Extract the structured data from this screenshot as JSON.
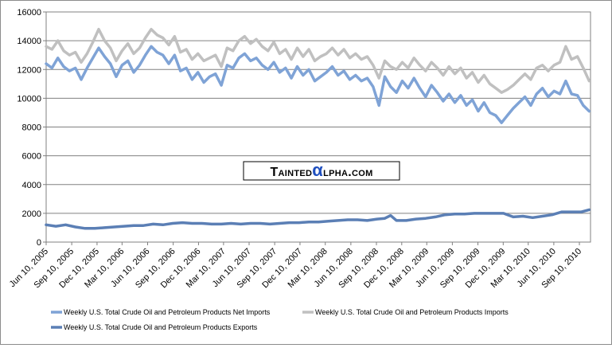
{
  "watermark": {
    "text_before": "Tainted",
    "alpha_glyph": "α",
    "text_after": "lpha.com",
    "alpha_color": "#1f4fbf"
  },
  "chart_data": {
    "type": "line",
    "title": "",
    "xlabel": "",
    "ylabel": "",
    "ylim": [
      0,
      16000
    ],
    "yticks": [
      0,
      2000,
      4000,
      6000,
      8000,
      10000,
      12000,
      14000,
      16000
    ],
    "xlim": [
      "2005-06-10",
      "2010-10-20"
    ],
    "xtick_labels": [
      {
        "date": "2005-06-10",
        "label": "Jun 10, 2005"
      },
      {
        "date": "2005-09-10",
        "label": "Sep 10, 2005"
      },
      {
        "date": "2005-12-10",
        "label": "Dec 10, 2005"
      },
      {
        "date": "2006-03-10",
        "label": "Mar 10, 2006"
      },
      {
        "date": "2006-06-10",
        "label": "Jun 10, 2006"
      },
      {
        "date": "2006-09-10",
        "label": "Sep 10, 2006"
      },
      {
        "date": "2006-12-10",
        "label": "Dec 10, 2006"
      },
      {
        "date": "2007-03-10",
        "label": "Mar 10, 2007"
      },
      {
        "date": "2007-06-10",
        "label": "Jun 10, 2007"
      },
      {
        "date": "2007-09-10",
        "label": "Sep 10, 2007"
      },
      {
        "date": "2007-12-10",
        "label": "Dec 10, 2007"
      },
      {
        "date": "2008-03-10",
        "label": "Mar 10, 2008"
      },
      {
        "date": "2008-06-10",
        "label": "Jun 10, 2008"
      },
      {
        "date": "2008-09-10",
        "label": "Sep 10, 2008"
      },
      {
        "date": "2008-12-10",
        "label": "Dec 10, 2008"
      },
      {
        "date": "2009-03-10",
        "label": "Mar 10, 2009"
      },
      {
        "date": "2009-06-10",
        "label": "Jun 10, 2009"
      },
      {
        "date": "2009-09-10",
        "label": "Sep 10, 2009"
      },
      {
        "date": "2009-12-10",
        "label": "Dec 10, 2009"
      },
      {
        "date": "2010-03-10",
        "label": "Mar 10, 2010"
      },
      {
        "date": "2010-06-10",
        "label": "Jun 10, 2010"
      },
      {
        "date": "2010-09-10",
        "label": "Sep 10, 2010"
      }
    ],
    "grid": true,
    "legend_position": "bottom",
    "series": [
      {
        "name": "Weekly U.S. Total Crude Oil and Petroleum Products Imports",
        "color": "#c0c0c0",
        "points": [
          [
            "2005-06-10",
            13600
          ],
          [
            "2005-07-01",
            13400
          ],
          [
            "2005-07-22",
            14000
          ],
          [
            "2005-08-12",
            13300
          ],
          [
            "2005-09-02",
            13000
          ],
          [
            "2005-09-23",
            13200
          ],
          [
            "2005-10-14",
            12500
          ],
          [
            "2005-11-04",
            13100
          ],
          [
            "2005-11-25",
            13900
          ],
          [
            "2005-12-16",
            14800
          ],
          [
            "2006-01-06",
            14000
          ],
          [
            "2006-01-27",
            13500
          ],
          [
            "2006-02-17",
            12600
          ],
          [
            "2006-03-10",
            13300
          ],
          [
            "2006-03-31",
            13800
          ],
          [
            "2006-04-21",
            13100
          ],
          [
            "2006-05-12",
            13500
          ],
          [
            "2006-06-02",
            14200
          ],
          [
            "2006-06-23",
            14800
          ],
          [
            "2006-07-14",
            14400
          ],
          [
            "2006-08-04",
            14200
          ],
          [
            "2006-08-25",
            13700
          ],
          [
            "2006-09-15",
            14300
          ],
          [
            "2006-10-06",
            13200
          ],
          [
            "2006-10-27",
            13400
          ],
          [
            "2006-11-17",
            12700
          ],
          [
            "2006-12-08",
            13100
          ],
          [
            "2006-12-29",
            12600
          ],
          [
            "2007-01-19",
            12800
          ],
          [
            "2007-02-09",
            13000
          ],
          [
            "2007-03-02",
            12200
          ],
          [
            "2007-03-23",
            13500
          ],
          [
            "2007-04-13",
            13300
          ],
          [
            "2007-05-04",
            14000
          ],
          [
            "2007-05-25",
            14300
          ],
          [
            "2007-06-15",
            13800
          ],
          [
            "2007-07-06",
            14100
          ],
          [
            "2007-07-27",
            13600
          ],
          [
            "2007-08-17",
            13300
          ],
          [
            "2007-09-07",
            13900
          ],
          [
            "2007-09-28",
            13100
          ],
          [
            "2007-10-19",
            13400
          ],
          [
            "2007-11-09",
            12700
          ],
          [
            "2007-11-30",
            13500
          ],
          [
            "2007-12-21",
            12900
          ],
          [
            "2008-01-11",
            13400
          ],
          [
            "2008-02-01",
            12600
          ],
          [
            "2008-02-22",
            12900
          ],
          [
            "2008-03-14",
            13100
          ],
          [
            "2008-04-04",
            13500
          ],
          [
            "2008-04-25",
            13000
          ],
          [
            "2008-05-16",
            13400
          ],
          [
            "2008-06-06",
            12800
          ],
          [
            "2008-06-27",
            13100
          ],
          [
            "2008-07-18",
            12700
          ],
          [
            "2008-08-08",
            12900
          ],
          [
            "2008-08-29",
            12300
          ],
          [
            "2008-09-19",
            11400
          ],
          [
            "2008-10-10",
            12600
          ],
          [
            "2008-10-31",
            12200
          ],
          [
            "2008-11-21",
            12000
          ],
          [
            "2008-12-12",
            12500
          ],
          [
            "2009-01-02",
            12100
          ],
          [
            "2009-01-23",
            12800
          ],
          [
            "2009-02-13",
            12300
          ],
          [
            "2009-03-06",
            11900
          ],
          [
            "2009-03-27",
            12500
          ],
          [
            "2009-04-17",
            12100
          ],
          [
            "2009-05-08",
            11600
          ],
          [
            "2009-05-29",
            12200
          ],
          [
            "2009-06-19",
            11700
          ],
          [
            "2009-07-10",
            12100
          ],
          [
            "2009-07-31",
            11400
          ],
          [
            "2009-08-21",
            11800
          ],
          [
            "2009-09-11",
            11100
          ],
          [
            "2009-10-02",
            11600
          ],
          [
            "2009-10-23",
            11000
          ],
          [
            "2009-11-13",
            10700
          ],
          [
            "2009-12-04",
            10400
          ],
          [
            "2009-12-25",
            10600
          ],
          [
            "2010-01-15",
            10900
          ],
          [
            "2010-02-05",
            11300
          ],
          [
            "2010-02-26",
            11700
          ],
          [
            "2010-03-19",
            11300
          ],
          [
            "2010-04-09",
            12100
          ],
          [
            "2010-04-30",
            12300
          ],
          [
            "2010-05-21",
            11900
          ],
          [
            "2010-06-11",
            12300
          ],
          [
            "2010-07-02",
            12500
          ],
          [
            "2010-07-23",
            13600
          ],
          [
            "2010-08-13",
            12700
          ],
          [
            "2010-09-03",
            12900
          ],
          [
            "2010-09-24",
            12100
          ],
          [
            "2010-10-15",
            11200
          ]
        ]
      },
      {
        "name": "Weekly U.S. Total Crude Oil and Petroleum Products Net Imports",
        "color": "#7fa3d6",
        "points": [
          [
            "2005-06-10",
            12400
          ],
          [
            "2005-07-01",
            12100
          ],
          [
            "2005-07-22",
            12800
          ],
          [
            "2005-08-12",
            12200
          ],
          [
            "2005-09-02",
            11900
          ],
          [
            "2005-09-23",
            12100
          ],
          [
            "2005-10-14",
            11300
          ],
          [
            "2005-11-04",
            12100
          ],
          [
            "2005-11-25",
            12800
          ],
          [
            "2005-12-16",
            13500
          ],
          [
            "2006-01-06",
            12900
          ],
          [
            "2006-01-27",
            12400
          ],
          [
            "2006-02-17",
            11500
          ],
          [
            "2006-03-10",
            12300
          ],
          [
            "2006-03-31",
            12600
          ],
          [
            "2006-04-21",
            11800
          ],
          [
            "2006-05-12",
            12300
          ],
          [
            "2006-06-02",
            13000
          ],
          [
            "2006-06-23",
            13600
          ],
          [
            "2006-07-14",
            13200
          ],
          [
            "2006-08-04",
            13000
          ],
          [
            "2006-08-25",
            12400
          ],
          [
            "2006-09-15",
            13000
          ],
          [
            "2006-10-06",
            11900
          ],
          [
            "2006-10-27",
            12100
          ],
          [
            "2006-11-17",
            11300
          ],
          [
            "2006-12-08",
            11800
          ],
          [
            "2006-12-29",
            11100
          ],
          [
            "2007-01-19",
            11500
          ],
          [
            "2007-02-09",
            11700
          ],
          [
            "2007-03-02",
            10900
          ],
          [
            "2007-03-23",
            12300
          ],
          [
            "2007-04-13",
            12100
          ],
          [
            "2007-05-04",
            12800
          ],
          [
            "2007-05-25",
            13100
          ],
          [
            "2007-06-15",
            12600
          ],
          [
            "2007-07-06",
            12800
          ],
          [
            "2007-07-27",
            12300
          ],
          [
            "2007-08-17",
            12000
          ],
          [
            "2007-09-07",
            12500
          ],
          [
            "2007-09-28",
            11800
          ],
          [
            "2007-10-19",
            12100
          ],
          [
            "2007-11-09",
            11400
          ],
          [
            "2007-11-30",
            12200
          ],
          [
            "2007-12-21",
            11600
          ],
          [
            "2008-01-11",
            12000
          ],
          [
            "2008-02-01",
            11200
          ],
          [
            "2008-02-22",
            11500
          ],
          [
            "2008-03-14",
            11800
          ],
          [
            "2008-04-04",
            12200
          ],
          [
            "2008-04-25",
            11600
          ],
          [
            "2008-05-16",
            11900
          ],
          [
            "2008-06-06",
            11300
          ],
          [
            "2008-06-27",
            11600
          ],
          [
            "2008-07-18",
            11200
          ],
          [
            "2008-08-08",
            11400
          ],
          [
            "2008-08-29",
            10800
          ],
          [
            "2008-09-19",
            9500
          ],
          [
            "2008-10-10",
            11500
          ],
          [
            "2008-10-31",
            10800
          ],
          [
            "2008-11-21",
            10400
          ],
          [
            "2008-12-12",
            11200
          ],
          [
            "2009-01-02",
            10700
          ],
          [
            "2009-01-23",
            11400
          ],
          [
            "2009-02-13",
            10700
          ],
          [
            "2009-03-06",
            10100
          ],
          [
            "2009-03-27",
            10900
          ],
          [
            "2009-04-17",
            10400
          ],
          [
            "2009-05-08",
            9800
          ],
          [
            "2009-05-29",
            10300
          ],
          [
            "2009-06-19",
            9700
          ],
          [
            "2009-07-10",
            10200
          ],
          [
            "2009-07-31",
            9500
          ],
          [
            "2009-08-21",
            9900
          ],
          [
            "2009-09-11",
            9100
          ],
          [
            "2009-10-02",
            9700
          ],
          [
            "2009-10-23",
            9000
          ],
          [
            "2009-11-13",
            8800
          ],
          [
            "2009-12-04",
            8300
          ],
          [
            "2009-12-25",
            8800
          ],
          [
            "2010-01-15",
            9300
          ],
          [
            "2010-02-05",
            9700
          ],
          [
            "2010-02-26",
            10100
          ],
          [
            "2010-03-19",
            9500
          ],
          [
            "2010-04-09",
            10300
          ],
          [
            "2010-04-30",
            10700
          ],
          [
            "2010-05-21",
            10100
          ],
          [
            "2010-06-11",
            10500
          ],
          [
            "2010-07-02",
            10300
          ],
          [
            "2010-07-23",
            11200
          ],
          [
            "2010-08-13",
            10300
          ],
          [
            "2010-09-03",
            10200
          ],
          [
            "2010-09-24",
            9500
          ],
          [
            "2010-10-15",
            9100
          ]
        ]
      },
      {
        "name": "Weekly U.S. Total Crude Oil and Petroleum Products Exports",
        "color": "#5b7fb5",
        "points": [
          [
            "2005-06-10",
            1200
          ],
          [
            "2005-07-15",
            1100
          ],
          [
            "2005-08-19",
            1200
          ],
          [
            "2005-09-23",
            1050
          ],
          [
            "2005-10-28",
            950
          ],
          [
            "2005-12-02",
            950
          ],
          [
            "2006-01-06",
            1000
          ],
          [
            "2006-02-10",
            1050
          ],
          [
            "2006-03-17",
            1100
          ],
          [
            "2006-04-21",
            1150
          ],
          [
            "2006-05-26",
            1150
          ],
          [
            "2006-06-30",
            1250
          ],
          [
            "2006-08-04",
            1200
          ],
          [
            "2006-09-08",
            1300
          ],
          [
            "2006-10-13",
            1350
          ],
          [
            "2006-11-17",
            1300
          ],
          [
            "2006-12-22",
            1300
          ],
          [
            "2007-01-26",
            1250
          ],
          [
            "2007-03-02",
            1250
          ],
          [
            "2007-04-06",
            1300
          ],
          [
            "2007-05-11",
            1250
          ],
          [
            "2007-06-15",
            1300
          ],
          [
            "2007-07-20",
            1300
          ],
          [
            "2007-08-24",
            1250
          ],
          [
            "2007-09-28",
            1300
          ],
          [
            "2007-11-02",
            1350
          ],
          [
            "2007-12-07",
            1350
          ],
          [
            "2008-01-11",
            1400
          ],
          [
            "2008-02-15",
            1400
          ],
          [
            "2008-03-21",
            1450
          ],
          [
            "2008-04-25",
            1500
          ],
          [
            "2008-05-30",
            1550
          ],
          [
            "2008-07-04",
            1550
          ],
          [
            "2008-08-08",
            1500
          ],
          [
            "2008-09-12",
            1600
          ],
          [
            "2008-10-10",
            1650
          ],
          [
            "2008-10-31",
            1850
          ],
          [
            "2008-11-21",
            1500
          ],
          [
            "2008-12-26",
            1500
          ],
          [
            "2009-01-30",
            1600
          ],
          [
            "2009-03-06",
            1650
          ],
          [
            "2009-04-10",
            1750
          ],
          [
            "2009-05-15",
            1900
          ],
          [
            "2009-06-19",
            1950
          ],
          [
            "2009-07-24",
            1950
          ],
          [
            "2009-08-28",
            2000
          ],
          [
            "2009-10-02",
            2000
          ],
          [
            "2009-11-06",
            2000
          ],
          [
            "2009-12-11",
            2000
          ],
          [
            "2010-01-15",
            1750
          ],
          [
            "2010-02-19",
            1800
          ],
          [
            "2010-03-26",
            1700
          ],
          [
            "2010-04-30",
            1800
          ],
          [
            "2010-06-04",
            1900
          ],
          [
            "2010-07-09",
            2100
          ],
          [
            "2010-08-13",
            2100
          ],
          [
            "2010-09-17",
            2100
          ],
          [
            "2010-10-15",
            2250
          ]
        ]
      }
    ]
  }
}
